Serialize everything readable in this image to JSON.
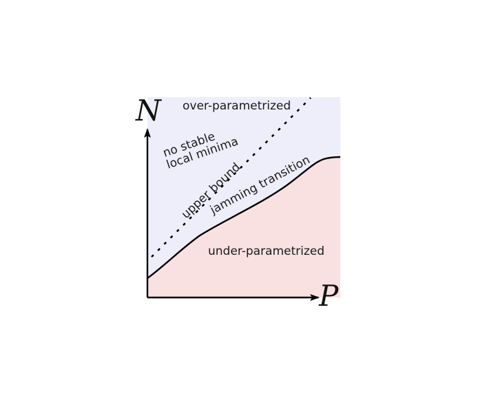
{
  "axes": {
    "x_label": "P",
    "y_label": "N"
  },
  "regions": {
    "upper": "over-parametrized",
    "lower": "under-parametrized"
  },
  "curves": {
    "jamming": "jamming transition",
    "bound": "upper bound"
  },
  "annotations": {
    "no_minima_line1": "no stable",
    "no_minima_line2": "local minima"
  },
  "colors": {
    "over_region": "#eeeefb",
    "under_region": "#f9e1e1",
    "curve": "#000000"
  }
}
